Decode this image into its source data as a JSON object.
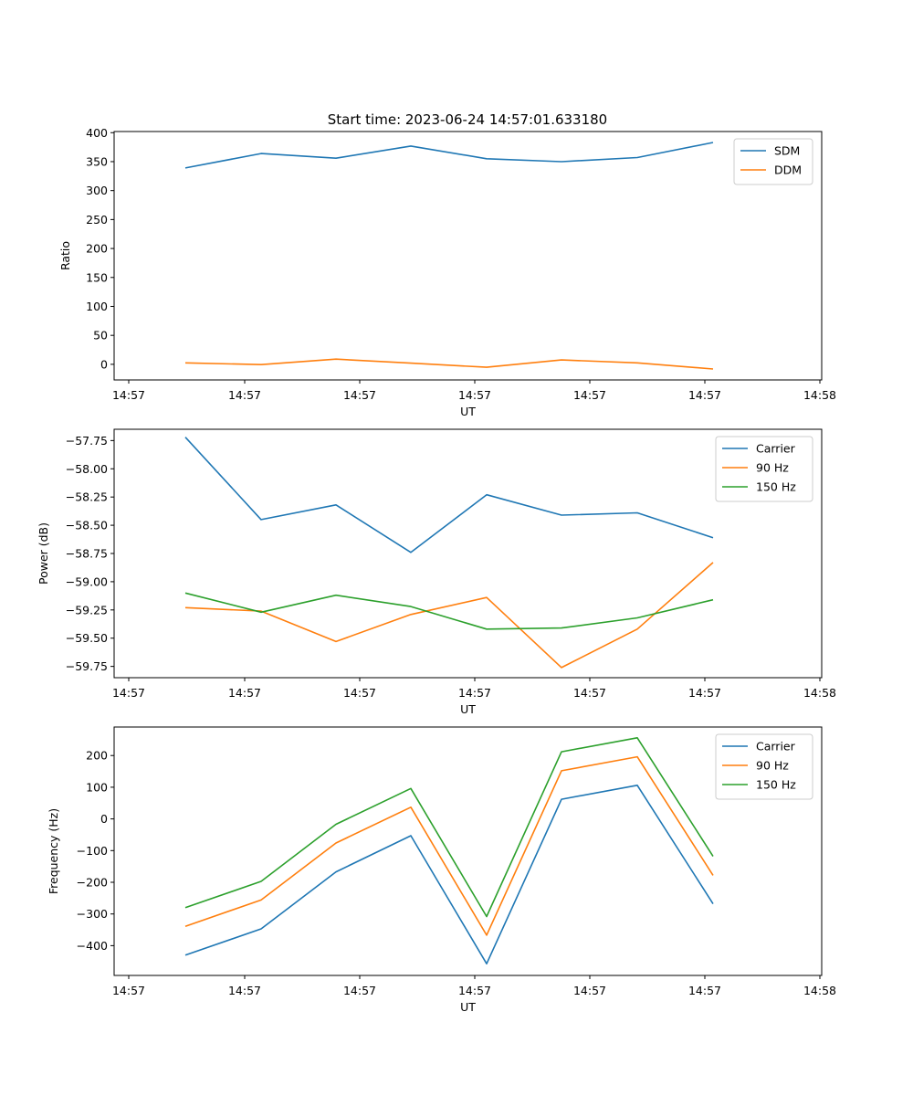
{
  "figure": {
    "title": "Start time: 2023-06-24 14:57:01.633180"
  },
  "chart_data": [
    {
      "type": "line",
      "title": "Start time: 2023-06-24 14:57:01.633180",
      "xlabel": "UT",
      "ylabel": "Ratio",
      "x_tick_labels": [
        "14:57",
        "14:57",
        "14:57",
        "14:57",
        "14:57",
        "14:57",
        "14:58"
      ],
      "y_ticks": [
        0,
        50,
        100,
        150,
        200,
        250,
        300,
        350,
        400
      ],
      "ylim": [
        -27,
        402
      ],
      "legend_position": "top-right",
      "grid": false,
      "series": [
        {
          "name": "SDM",
          "color": "#1f77b4",
          "values": [
            339,
            364,
            356,
            377,
            355,
            350,
            357,
            383
          ]
        },
        {
          "name": "DDM",
          "color": "#ff7f0e",
          "values": [
            2.5,
            -0.5,
            9,
            2,
            -5,
            7.5,
            2.5,
            -8
          ]
        }
      ]
    },
    {
      "type": "line",
      "xlabel": "UT",
      "ylabel": "Power (dB)",
      "x_tick_labels": [
        "14:57",
        "14:57",
        "14:57",
        "14:57",
        "14:57",
        "14:57",
        "14:58"
      ],
      "y_ticks": [
        -59.75,
        -59.5,
        -59.25,
        -59.0,
        -58.75,
        -58.5,
        -58.25,
        -58.0,
        -57.75
      ],
      "y_tick_labels": [
        "−59.75",
        "−59.50",
        "−59.25",
        "−59.00",
        "−58.75",
        "−58.50",
        "−58.25",
        "−58.00",
        "−57.75"
      ],
      "ylim": [
        -59.85,
        -57.65
      ],
      "legend_position": "top-right",
      "grid": false,
      "series": [
        {
          "name": "Carrier",
          "color": "#1f77b4",
          "values": [
            -57.72,
            -58.45,
            -58.32,
            -58.74,
            -58.23,
            -58.41,
            -58.39,
            -58.61
          ]
        },
        {
          "name": "90 Hz",
          "color": "#ff7f0e",
          "values": [
            -59.23,
            -59.26,
            -59.53,
            -59.29,
            -59.14,
            -59.76,
            -59.42,
            -58.83
          ]
        },
        {
          "name": "150 Hz",
          "color": "#2ca02c",
          "values": [
            -59.1,
            -59.27,
            -59.12,
            -59.22,
            -59.42,
            -59.41,
            -59.32,
            -59.16
          ]
        }
      ]
    },
    {
      "type": "line",
      "xlabel": "UT",
      "ylabel": "Frequency (Hz)",
      "x_tick_labels": [
        "14:57",
        "14:57",
        "14:57",
        "14:57",
        "14:57",
        "14:57",
        "14:58"
      ],
      "y_ticks": [
        -400,
        -300,
        -200,
        -100,
        0,
        100,
        200
      ],
      "y_tick_labels": [
        "−400",
        "−300",
        "−200",
        "−100",
        "0",
        "100",
        "200"
      ],
      "ylim": [
        -494,
        290
      ],
      "legend_position": "top-right",
      "grid": false,
      "series": [
        {
          "name": "Carrier",
          "color": "#1f77b4",
          "values": [
            -430,
            -347,
            -167,
            -53,
            -457,
            62,
            106,
            -268
          ]
        },
        {
          "name": "90 Hz",
          "color": "#ff7f0e",
          "values": [
            -339,
            -256,
            -76,
            37,
            -367,
            152,
            196,
            -178
          ]
        },
        {
          "name": "150 Hz",
          "color": "#2ca02c",
          "values": [
            -280,
            -197,
            -17,
            96,
            -308,
            212,
            256,
            -118
          ]
        }
      ]
    }
  ]
}
